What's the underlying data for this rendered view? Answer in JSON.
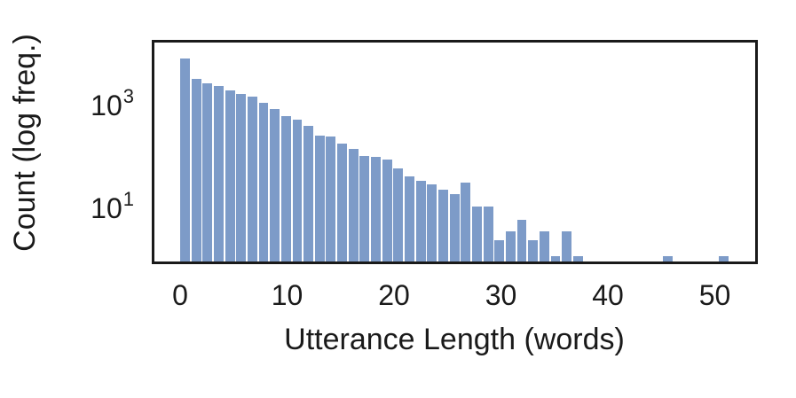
{
  "figure": {
    "xlabel": "Utterance Length (words)",
    "ylabel": "Count (log freq.)",
    "bar_color": "#7d9bc8",
    "frame_color": "#1a1a1a",
    "text_color": "#1a1a1a",
    "background_color": "#ffffff"
  },
  "chart_data": {
    "type": "bar",
    "subtype": "histogram",
    "title": "",
    "xlabel": "Utterance Length (words)",
    "ylabel": "Count (log freq.)",
    "y_scale": "log",
    "xlim": [
      -2.4,
      53.8
    ],
    "ylim": [
      0.77,
      14000
    ],
    "grid": false,
    "legend": false,
    "bin_start_words": 0,
    "bin_width_words": 1.05,
    "counts": [
      6900,
      2800,
      2250,
      2000,
      1650,
      1400,
      1250,
      940,
      700,
      520,
      440,
      340,
      220,
      210,
      150,
      120,
      87,
      83,
      73,
      50,
      35,
      29,
      24,
      19,
      16,
      26,
      9,
      9,
      2,
      3,
      5,
      2,
      3,
      1,
      3,
      1,
      0,
      0,
      0,
      0,
      0,
      0,
      0,
      1,
      0,
      0,
      0,
      0,
      1
    ],
    "x_ticks": [
      {
        "value": 0,
        "label": "0"
      },
      {
        "value": 10,
        "label": "10"
      },
      {
        "value": 20,
        "label": "20"
      },
      {
        "value": 30,
        "label": "30"
      },
      {
        "value": 40,
        "label": "40"
      },
      {
        "value": 50,
        "label": "50"
      }
    ],
    "y_ticks": [
      {
        "value": 1000,
        "base": "10",
        "exp": "3"
      },
      {
        "value": 10,
        "base": "10",
        "exp": "1"
      }
    ]
  }
}
